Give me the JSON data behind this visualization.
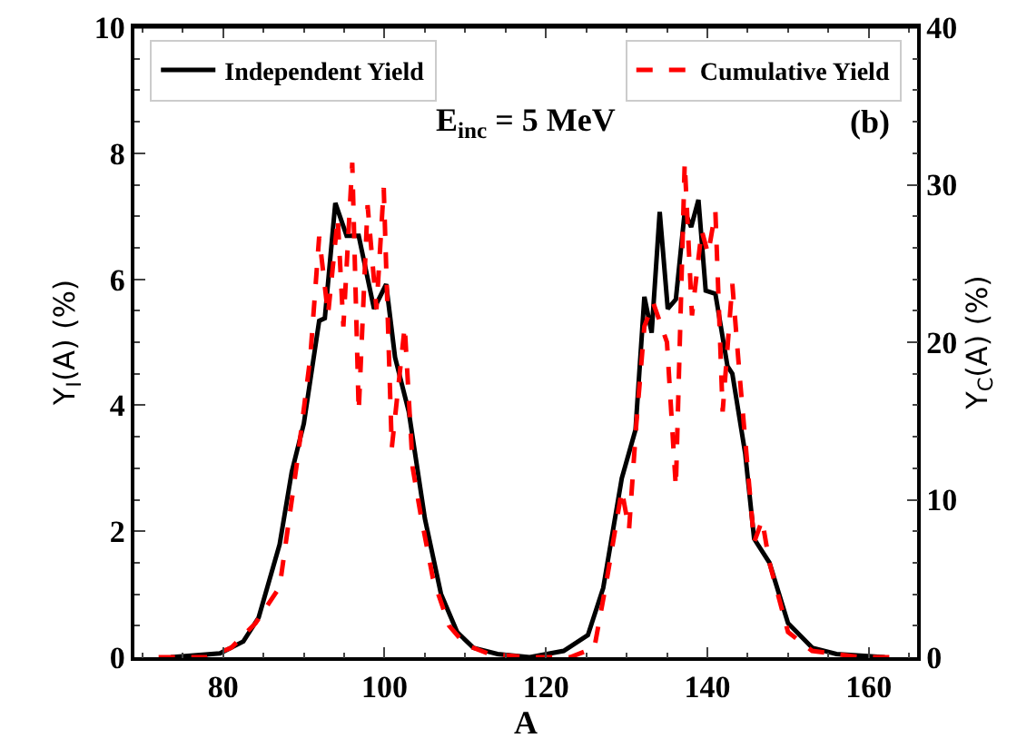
{
  "chart_data": {
    "type": "line",
    "xlabel": "A",
    "ylabel": "Y$_{I}$(A) (%)",
    "y2label": "Y$_{C}$(A) (%)",
    "annotations": [
      "E$_{inc}$ = 5 MeV",
      "(b)"
    ],
    "xlim": [
      69,
      166
    ],
    "xticks": [
      80,
      100,
      120,
      140,
      160
    ],
    "ylim": [
      0,
      10
    ],
    "yticks": [
      0,
      2,
      4,
      6,
      8,
      10
    ],
    "y2lim": [
      0,
      40
    ],
    "y2ticks": [
      0,
      10,
      20,
      30,
      40
    ],
    "legend": "top",
    "grid": false,
    "series": [
      {
        "name": "Independent Yield",
        "color": "#000000",
        "line_style": "solid",
        "axis": "y",
        "x": [
          73.5,
          79.6,
          82.5,
          84.4,
          87,
          88.5,
          90,
          91.9,
          92.6,
          93.9,
          95.3,
          96.8,
          98.7,
          100.2,
          101.3,
          103,
          105,
          107,
          109,
          111,
          114,
          118,
          122.2,
          125.2,
          127.1,
          129.4,
          131.1,
          132.2,
          133.1,
          134.1,
          135.1,
          136.1,
          137.2,
          138,
          138.9,
          139.8,
          141,
          142.5,
          143.1,
          144.7,
          145.8,
          147.7,
          150,
          153,
          156,
          162
        ],
        "values": [
          0,
          0.06,
          0.25,
          0.63,
          1.79,
          2.94,
          3.71,
          5.34,
          5.38,
          7.21,
          6.69,
          6.69,
          5.53,
          5.92,
          4.76,
          3.9,
          2.2,
          1.0,
          0.4,
          0.15,
          0.05,
          0,
          0.1,
          0.35,
          1.1,
          2.84,
          3.61,
          5.72,
          5.15,
          7.07,
          5.53,
          5.68,
          7.07,
          6.83,
          7.26,
          5.82,
          5.77,
          4.62,
          4.5,
          3.23,
          1.88,
          1.5,
          0.54,
          0.15,
          0.05,
          0
        ]
      },
      {
        "name": "Cumulative Yield",
        "color": "#ff0000",
        "line_style": "dashed",
        "axis": "y2",
        "x": [
          72,
          78,
          81,
          84,
          87,
          89.3,
          90.8,
          91.9,
          93,
          94.2,
          94.9,
          96,
          96.8,
          97.9,
          99,
          99.9,
          100.9,
          102.5,
          103.5,
          104.5,
          106,
          108,
          110,
          113,
          118,
          123,
          126,
          127.5,
          129.4,
          130.3,
          131.2,
          132.2,
          133.3,
          135,
          136.1,
          137.2,
          138.1,
          139.3,
          140.1,
          141,
          141.9,
          143.1,
          144,
          145.8,
          146.8,
          147.7,
          150,
          153,
          159,
          163
        ],
        "values": [
          0,
          0,
          0.6,
          2.15,
          4.46,
          12.9,
          19.05,
          26.7,
          21.75,
          27.9,
          21,
          31.4,
          15.6,
          28.7,
          22.1,
          29.8,
          13.3,
          21,
          12,
          9,
          5,
          2,
          0.8,
          0.2,
          0,
          0,
          0.6,
          4.8,
          10.6,
          8.1,
          14.8,
          21,
          22.5,
          20,
          10.8,
          31.4,
          21.7,
          27.1,
          25.6,
          28.3,
          15.6,
          23.7,
          17.9,
          7.3,
          8.7,
          6,
          1.6,
          0.4,
          0,
          0
        ]
      }
    ]
  }
}
